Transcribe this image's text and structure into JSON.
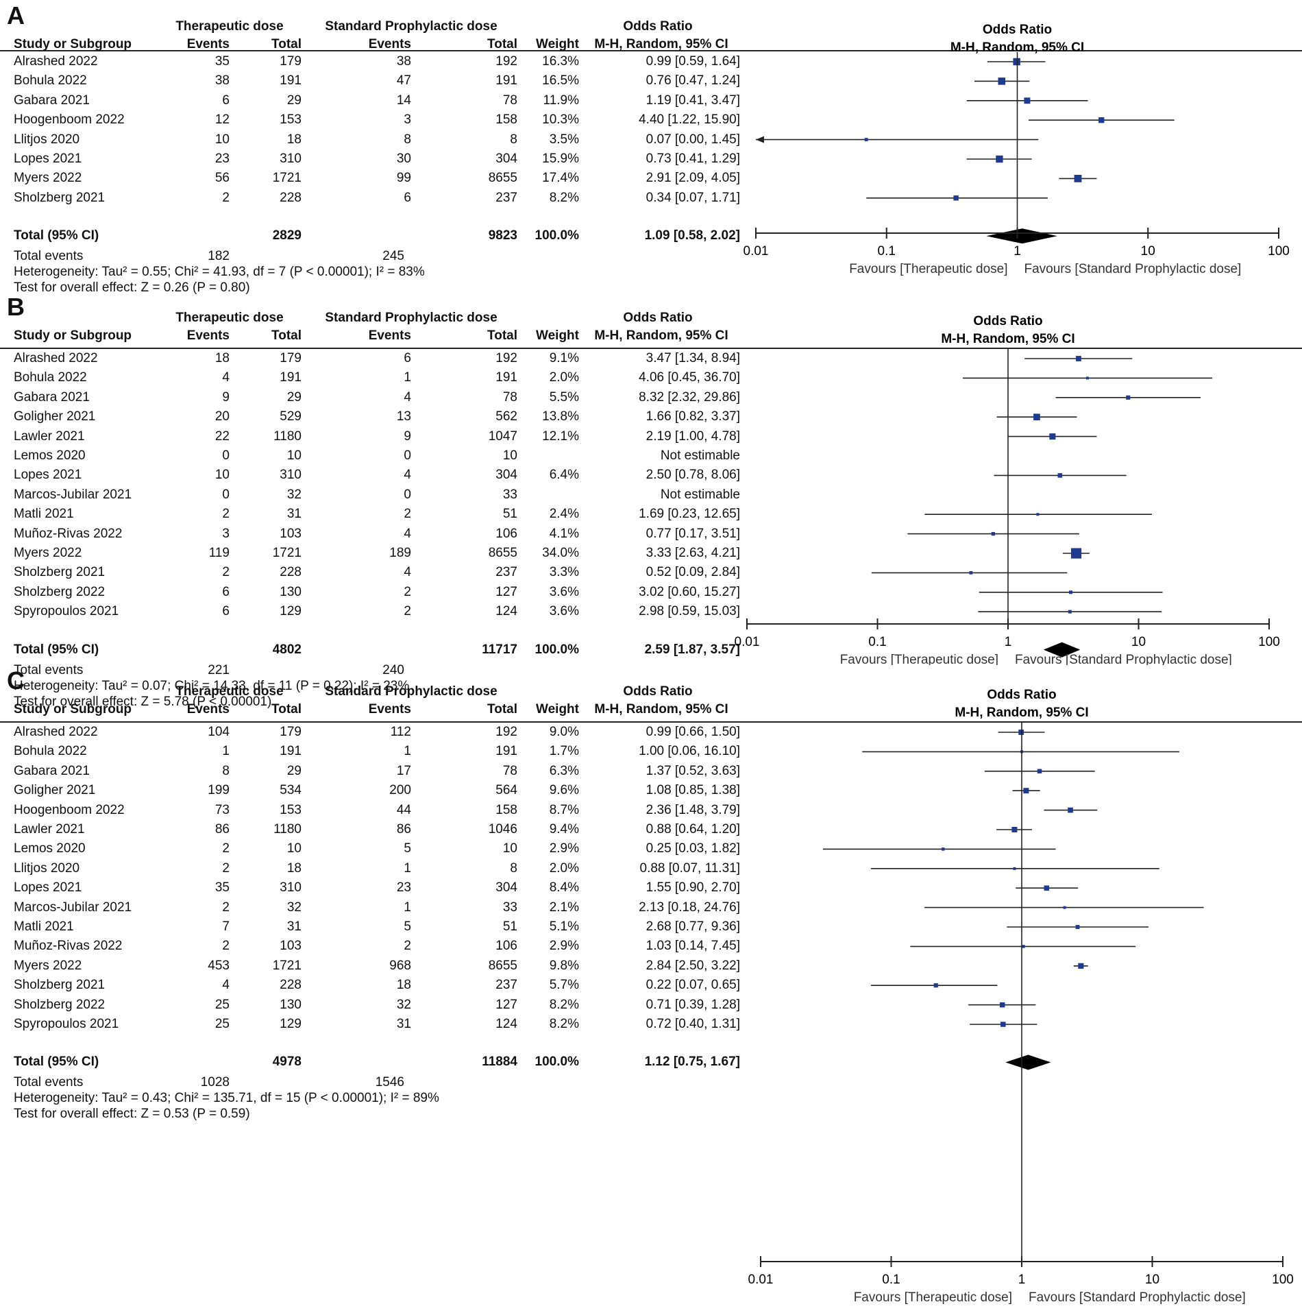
{
  "chart_data": [
    {
      "type": "forest",
      "panel_label": "A",
      "group1_label": "Therapeutic dose",
      "group2_label": "Standard Prophylactic dose",
      "col_study": "Study or Subgroup",
      "col_events1": "Events",
      "col_total1": "Total",
      "col_events2": "Events",
      "col_total2": "Total",
      "col_weight": "Weight",
      "col_or_title": "Odds Ratio",
      "col_or_sub": "M-H, Random, 95% CI",
      "plot_title": "Odds Ratio",
      "plot_sub": "M-H, Random, 95% CI",
      "rows": [
        {
          "study": "Alrashed 2022",
          "e1": "35",
          "n1": "179",
          "e2": "38",
          "n2": "192",
          "weight": "16.3%",
          "ci_text": "0.99 [0.59, 1.64]",
          "or": 0.99,
          "lo": 0.59,
          "hi": 1.64,
          "w": 16.3
        },
        {
          "study": "Bohula 2022",
          "e1": "38",
          "n1": "191",
          "e2": "47",
          "n2": "191",
          "weight": "16.5%",
          "ci_text": "0.76 [0.47, 1.24]",
          "or": 0.76,
          "lo": 0.47,
          "hi": 1.24,
          "w": 16.5
        },
        {
          "study": "Gabara 2021",
          "e1": "6",
          "n1": "29",
          "e2": "14",
          "n2": "78",
          "weight": "11.9%",
          "ci_text": "1.19 [0.41, 3.47]",
          "or": 1.19,
          "lo": 0.41,
          "hi": 3.47,
          "w": 11.9
        },
        {
          "study": "Hoogenboom 2022",
          "e1": "12",
          "n1": "153",
          "e2": "3",
          "n2": "158",
          "weight": "10.3%",
          "ci_text": "4.40 [1.22, 15.90]",
          "or": 4.4,
          "lo": 1.22,
          "hi": 15.9,
          "w": 10.3
        },
        {
          "study": "Llitjos 2020",
          "e1": "10",
          "n1": "18",
          "e2": "8",
          "n2": "8",
          "weight": "3.5%",
          "ci_text": "0.07 [0.00, 1.45]",
          "or": 0.07,
          "lo": 0.0,
          "hi": 1.45,
          "w": 3.5
        },
        {
          "study": "Lopes 2021",
          "e1": "23",
          "n1": "310",
          "e2": "30",
          "n2": "304",
          "weight": "15.9%",
          "ci_text": "0.73 [0.41, 1.29]",
          "or": 0.73,
          "lo": 0.41,
          "hi": 1.29,
          "w": 15.9
        },
        {
          "study": "Myers 2022",
          "e1": "56",
          "n1": "1721",
          "e2": "99",
          "n2": "8655",
          "weight": "17.4%",
          "ci_text": "2.91 [2.09, 4.05]",
          "or": 2.91,
          "lo": 2.09,
          "hi": 4.05,
          "w": 17.4
        },
        {
          "study": "Sholzberg 2021",
          "e1": "2",
          "n1": "228",
          "e2": "6",
          "n2": "237",
          "weight": "8.2%",
          "ci_text": "0.34 [0.07, 1.71]",
          "or": 0.34,
          "lo": 0.07,
          "hi": 1.71,
          "w": 8.2
        }
      ],
      "total": {
        "label": "Total (95% CI)",
        "n1": "2829",
        "n2": "9823",
        "weight": "100.0%",
        "ci_text": "1.09 [0.58, 2.02]",
        "or": 1.09,
        "lo": 0.58,
        "hi": 2.02
      },
      "total_events": {
        "label": "Total events",
        "e1": "182",
        "e2": "245"
      },
      "heterogeneity": "Heterogeneity: Tau² = 0.55; Chi² = 41.93, df = 7 (P < 0.00001); I² = 83%",
      "overall_effect": "Test for overall effect: Z = 0.26 (P = 0.80)",
      "x_scale": "log",
      "x_ticks": [
        0.01,
        0.1,
        1,
        10,
        100
      ],
      "x_tick_labels": [
        "0.01",
        "0.1",
        "1",
        "10",
        "100"
      ],
      "favours_left": "Favours [Therapeutic dose]",
      "favours_right": "Favours [Standard Prophylactic dose]"
    },
    {
      "type": "forest",
      "panel_label": "B",
      "group1_label": "Therapeutic dose",
      "group2_label": "Standard Prophylactic dose",
      "col_study": "Study or Subgroup",
      "col_events1": "Events",
      "col_total1": "Total",
      "col_events2": "Events",
      "col_total2": "Total",
      "col_weight": "Weight",
      "col_or_title": "Odds Ratio",
      "col_or_sub": "M-H, Random, 95% CI",
      "plot_title": "Odds Ratio",
      "plot_sub": "M-H, Random, 95% CI",
      "rows": [
        {
          "study": "Alrashed 2022",
          "e1": "18",
          "n1": "179",
          "e2": "6",
          "n2": "192",
          "weight": "9.1%",
          "ci_text": "3.47 [1.34, 8.94]",
          "or": 3.47,
          "lo": 1.34,
          "hi": 8.94,
          "w": 9.1
        },
        {
          "study": "Bohula 2022",
          "e1": "4",
          "n1": "191",
          "e2": "1",
          "n2": "191",
          "weight": "2.0%",
          "ci_text": "4.06 [0.45, 36.70]",
          "or": 4.06,
          "lo": 0.45,
          "hi": 36.7,
          "w": 2.0
        },
        {
          "study": "Gabara 2021",
          "e1": "9",
          "n1": "29",
          "e2": "4",
          "n2": "78",
          "weight": "5.5%",
          "ci_text": "8.32 [2.32, 29.86]",
          "or": 8.32,
          "lo": 2.32,
          "hi": 29.86,
          "w": 5.5
        },
        {
          "study": "Goligher 2021",
          "e1": "20",
          "n1": "529",
          "e2": "13",
          "n2": "562",
          "weight": "13.8%",
          "ci_text": "1.66 [0.82, 3.37]",
          "or": 1.66,
          "lo": 0.82,
          "hi": 3.37,
          "w": 13.8
        },
        {
          "study": "Lawler 2021",
          "e1": "22",
          "n1": "1180",
          "e2": "9",
          "n2": "1047",
          "weight": "12.1%",
          "ci_text": "2.19 [1.00, 4.78]",
          "or": 2.19,
          "lo": 1.0,
          "hi": 4.78,
          "w": 12.1
        },
        {
          "study": "Lemos 2020",
          "e1": "0",
          "n1": "10",
          "e2": "0",
          "n2": "10",
          "weight": "",
          "ci_text": "Not estimable",
          "or": null,
          "lo": null,
          "hi": null,
          "w": 0
        },
        {
          "study": "Lopes 2021",
          "e1": "10",
          "n1": "310",
          "e2": "4",
          "n2": "304",
          "weight": "6.4%",
          "ci_text": "2.50 [0.78, 8.06]",
          "or": 2.5,
          "lo": 0.78,
          "hi": 8.06,
          "w": 6.4
        },
        {
          "study": "Marcos-Jubilar 2021",
          "e1": "0",
          "n1": "32",
          "e2": "0",
          "n2": "33",
          "weight": "",
          "ci_text": "Not estimable",
          "or": null,
          "lo": null,
          "hi": null,
          "w": 0
        },
        {
          "study": "Matli 2021",
          "e1": "2",
          "n1": "31",
          "e2": "2",
          "n2": "51",
          "weight": "2.4%",
          "ci_text": "1.69 [0.23, 12.65]",
          "or": 1.69,
          "lo": 0.23,
          "hi": 12.65,
          "w": 2.4
        },
        {
          "study": "Muñoz-Rivas 2022",
          "e1": "3",
          "n1": "103",
          "e2": "4",
          "n2": "106",
          "weight": "4.1%",
          "ci_text": "0.77 [0.17, 3.51]",
          "or": 0.77,
          "lo": 0.17,
          "hi": 3.51,
          "w": 4.1
        },
        {
          "study": "Myers 2022",
          "e1": "119",
          "n1": "1721",
          "e2": "189",
          "n2": "8655",
          "weight": "34.0%",
          "ci_text": "3.33 [2.63, 4.21]",
          "or": 3.33,
          "lo": 2.63,
          "hi": 4.21,
          "w": 34.0
        },
        {
          "study": "Sholzberg 2021",
          "e1": "2",
          "n1": "228",
          "e2": "4",
          "n2": "237",
          "weight": "3.3%",
          "ci_text": "0.52 [0.09, 2.84]",
          "or": 0.52,
          "lo": 0.09,
          "hi": 2.84,
          "w": 3.3
        },
        {
          "study": "Sholzberg 2022",
          "e1": "6",
          "n1": "130",
          "e2": "2",
          "n2": "127",
          "weight": "3.6%",
          "ci_text": "3.02 [0.60, 15.27]",
          "or": 3.02,
          "lo": 0.6,
          "hi": 15.27,
          "w": 3.6
        },
        {
          "study": "Spyropoulos 2021",
          "e1": "6",
          "n1": "129",
          "e2": "2",
          "n2": "124",
          "weight": "3.6%",
          "ci_text": "2.98 [0.59, 15.03]",
          "or": 2.98,
          "lo": 0.59,
          "hi": 15.03,
          "w": 3.6
        }
      ],
      "total": {
        "label": "Total (95% CI)",
        "n1": "4802",
        "n2": "11717",
        "weight": "100.0%",
        "ci_text": "2.59 [1.87, 3.57]",
        "or": 2.59,
        "lo": 1.87,
        "hi": 3.57
      },
      "total_events": {
        "label": "Total events",
        "e1": "221",
        "e2": "240"
      },
      "heterogeneity": "Heterogeneity: Tau² = 0.07; Chi² = 14.33, df = 11 (P = 0.22); I² = 23%",
      "overall_effect": "Test for overall effect: Z = 5.78 (P < 0.00001)",
      "x_scale": "log",
      "x_ticks": [
        0.01,
        0.1,
        1,
        10,
        100
      ],
      "x_tick_labels": [
        "0.01",
        "0.1",
        "1",
        "10",
        "100"
      ],
      "favours_left": "Favours [Therapeutic dose]",
      "favours_right": "Favours [Standard Prophylactic dose]"
    },
    {
      "type": "forest",
      "panel_label": "C",
      "group1_label": "Therapeutic dose",
      "group2_label": "Standard Prophylactic dose",
      "col_study": "Study or Subgroup",
      "col_events1": "Events",
      "col_total1": "Total",
      "col_events2": "Events",
      "col_total2": "Total",
      "col_weight": "Weight",
      "col_or_title": "Odds Ratio",
      "col_or_sub": "M-H, Random, 95% CI",
      "plot_title": "Odds Ratio",
      "plot_sub": "M-H, Random, 95% CI",
      "rows": [
        {
          "study": "Alrashed 2022",
          "e1": "104",
          "n1": "179",
          "e2": "112",
          "n2": "192",
          "weight": "9.0%",
          "ci_text": "0.99 [0.66, 1.50]",
          "or": 0.99,
          "lo": 0.66,
          "hi": 1.5,
          "w": 9.0
        },
        {
          "study": "Bohula 2022",
          "e1": "1",
          "n1": "191",
          "e2": "1",
          "n2": "191",
          "weight": "1.7%",
          "ci_text": "1.00 [0.06, 16.10]",
          "or": 1.0,
          "lo": 0.06,
          "hi": 16.1,
          "w": 1.7
        },
        {
          "study": "Gabara 2021",
          "e1": "8",
          "n1": "29",
          "e2": "17",
          "n2": "78",
          "weight": "6.3%",
          "ci_text": "1.37 [0.52, 3.63]",
          "or": 1.37,
          "lo": 0.52,
          "hi": 3.63,
          "w": 6.3
        },
        {
          "study": "Goligher 2021",
          "e1": "199",
          "n1": "534",
          "e2": "200",
          "n2": "564",
          "weight": "9.6%",
          "ci_text": "1.08 [0.85, 1.38]",
          "or": 1.08,
          "lo": 0.85,
          "hi": 1.38,
          "w": 9.6
        },
        {
          "study": "Hoogenboom 2022",
          "e1": "73",
          "n1": "153",
          "e2": "44",
          "n2": "158",
          "weight": "8.7%",
          "ci_text": "2.36 [1.48, 3.79]",
          "or": 2.36,
          "lo": 1.48,
          "hi": 3.79,
          "w": 8.7
        },
        {
          "study": "Lawler 2021",
          "e1": "86",
          "n1": "1180",
          "e2": "86",
          "n2": "1046",
          "weight": "9.4%",
          "ci_text": "0.88 [0.64, 1.20]",
          "or": 0.88,
          "lo": 0.64,
          "hi": 1.2,
          "w": 9.4
        },
        {
          "study": "Lemos 2020",
          "e1": "2",
          "n1": "10",
          "e2": "5",
          "n2": "10",
          "weight": "2.9%",
          "ci_text": "0.25 [0.03, 1.82]",
          "or": 0.25,
          "lo": 0.03,
          "hi": 1.82,
          "w": 2.9
        },
        {
          "study": "Llitjos 2020",
          "e1": "2",
          "n1": "18",
          "e2": "1",
          "n2": "8",
          "weight": "2.0%",
          "ci_text": "0.88 [0.07, 11.31]",
          "or": 0.88,
          "lo": 0.07,
          "hi": 11.31,
          "w": 2.0
        },
        {
          "study": "Lopes 2021",
          "e1": "35",
          "n1": "310",
          "e2": "23",
          "n2": "304",
          "weight": "8.4%",
          "ci_text": "1.55 [0.90, 2.70]",
          "or": 1.55,
          "lo": 0.9,
          "hi": 2.7,
          "w": 8.4
        },
        {
          "study": "Marcos-Jubilar 2021",
          "e1": "2",
          "n1": "32",
          "e2": "1",
          "n2": "33",
          "weight": "2.1%",
          "ci_text": "2.13 [0.18, 24.76]",
          "or": 2.13,
          "lo": 0.18,
          "hi": 24.76,
          "w": 2.1
        },
        {
          "study": "Matli 2021",
          "e1": "7",
          "n1": "31",
          "e2": "5",
          "n2": "51",
          "weight": "5.1%",
          "ci_text": "2.68 [0.77, 9.36]",
          "or": 2.68,
          "lo": 0.77,
          "hi": 9.36,
          "w": 5.1
        },
        {
          "study": "Muñoz-Rivas 2022",
          "e1": "2",
          "n1": "103",
          "e2": "2",
          "n2": "106",
          "weight": "2.9%",
          "ci_text": "1.03 [0.14, 7.45]",
          "or": 1.03,
          "lo": 0.14,
          "hi": 7.45,
          "w": 2.9
        },
        {
          "study": "Myers 2022",
          "e1": "453",
          "n1": "1721",
          "e2": "968",
          "n2": "8655",
          "weight": "9.8%",
          "ci_text": "2.84 [2.50, 3.22]",
          "or": 2.84,
          "lo": 2.5,
          "hi": 3.22,
          "w": 9.8
        },
        {
          "study": "Sholzberg 2021",
          "e1": "4",
          "n1": "228",
          "e2": "18",
          "n2": "237",
          "weight": "5.7%",
          "ci_text": "0.22 [0.07, 0.65]",
          "or": 0.22,
          "lo": 0.07,
          "hi": 0.65,
          "w": 5.7
        },
        {
          "study": "Sholzberg 2022",
          "e1": "25",
          "n1": "130",
          "e2": "32",
          "n2": "127",
          "weight": "8.2%",
          "ci_text": "0.71 [0.39, 1.28]",
          "or": 0.71,
          "lo": 0.39,
          "hi": 1.28,
          "w": 8.2
        },
        {
          "study": "Spyropoulos 2021",
          "e1": "25",
          "n1": "129",
          "e2": "31",
          "n2": "124",
          "weight": "8.2%",
          "ci_text": "0.72 [0.40, 1.31]",
          "or": 0.72,
          "lo": 0.4,
          "hi": 1.31,
          "w": 8.2
        }
      ],
      "total": {
        "label": "Total (95% CI)",
        "n1": "4978",
        "n2": "11884",
        "weight": "100.0%",
        "ci_text": "1.12 [0.75, 1.67]",
        "or": 1.12,
        "lo": 0.75,
        "hi": 1.67
      },
      "total_events": {
        "label": "Total events",
        "e1": "1028",
        "e2": "1546"
      },
      "heterogeneity": "Heterogeneity: Tau² = 0.43; Chi² = 135.71, df = 15 (P < 0.00001); I² = 89%",
      "overall_effect": "Test for overall effect: Z = 0.53 (P = 0.59)",
      "x_scale": "log",
      "x_ticks": [
        0.01,
        0.1,
        1,
        10,
        100
      ],
      "x_tick_labels": [
        "0.01",
        "0.1",
        "1",
        "10",
        "100"
      ],
      "favours_left": "Favours [Therapeutic dose]",
      "favours_right": "Favours [Standard Prophylactic dose]"
    }
  ],
  "colors": {
    "marker": "#1f3b8f",
    "diamond": "#000000",
    "line": "#222222"
  }
}
